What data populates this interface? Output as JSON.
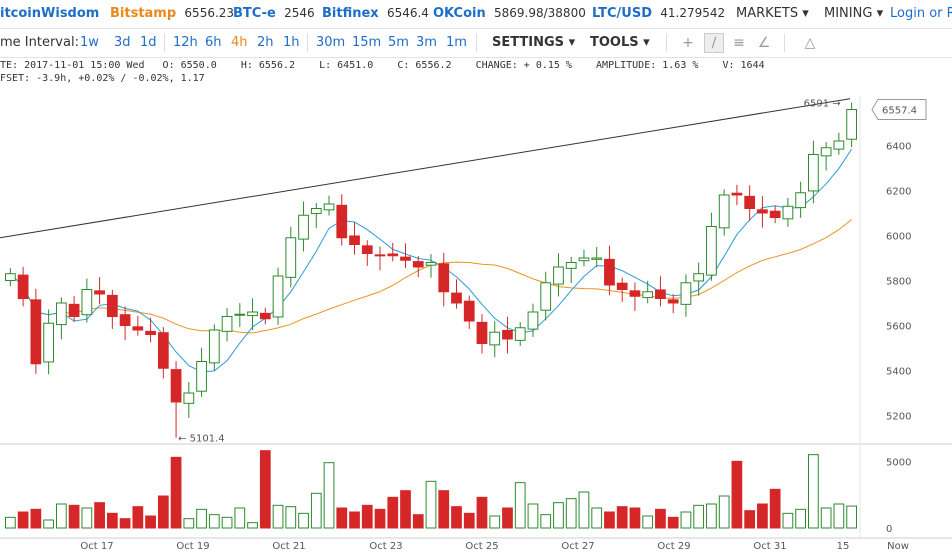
{
  "topbar": {
    "brand": "itcoinWisdom",
    "tickers": [
      {
        "name": "Bitstamp",
        "value": "6556.23",
        "color": "#e88a1a"
      },
      {
        "name": "BTC-e",
        "value": "2546",
        "color": "#1e6ec8"
      },
      {
        "name": "Bitfinex",
        "value": "6546.4",
        "color": "#1e6ec8"
      },
      {
        "name": "OKCoin",
        "value": "5869.98/38800",
        "color": "#1e6ec8"
      },
      {
        "name": "LTC/USD",
        "value": "41.279542",
        "color": "#1e6ec8"
      }
    ],
    "markets_label": "MARKETS",
    "mining_label": "MINING",
    "login_label": "Login or Re"
  },
  "intervals": {
    "label": "me Interval:",
    "items": [
      "1w",
      "3d",
      "1d",
      "12h",
      "6h",
      "4h",
      "2h",
      "1h",
      "30m",
      "15m",
      "5m",
      "3m",
      "1m"
    ],
    "active": "4h",
    "settings_label": "SETTINGS",
    "tools_label": "TOOLS"
  },
  "info": {
    "line1": "TE: 2017-11-01 15:00 Wed   O: 6550.0    H: 6556.2    L: 6451.0    C: 6556.2    CHANGE: + 0.15 %    AMPLITUDE: 1.63 %    V: 1644",
    "line2": "FSET: -3.9h, +0.02% / -0.02%, 1.17"
  },
  "chart_data": {
    "type": "candlestick",
    "y_ticks": [
      "6400",
      "6200",
      "6000",
      "5800",
      "5600",
      "5400",
      "5200"
    ],
    "y_range": [
      5100,
      6620
    ],
    "x_ticks": [
      "Oct 17",
      "Oct 19",
      "Oct 21",
      "Oct 23",
      "Oct 25",
      "Oct 27",
      "Oct 29",
      "Oct 31",
      "15",
      "Now"
    ],
    "price_label": "6557.4",
    "high_annotation": "6591",
    "low_annotation": "5101.4",
    "volume_ticks": [
      "5000",
      "0"
    ],
    "close": [
      5830,
      5720,
      5430,
      5610,
      5700,
      5640,
      5760,
      5740,
      5640,
      5600,
      5580,
      5560,
      5410,
      5260,
      5300,
      5440,
      5580,
      5640,
      5650,
      5660,
      5630,
      5820,
      5990,
      6090,
      6120,
      6140,
      5990,
      5960,
      5920,
      5910,
      5910,
      5890,
      5860,
      5880,
      5750,
      5700,
      5620,
      5520,
      5570,
      5540,
      5590,
      5660,
      5790,
      5860,
      5880,
      5900,
      5900,
      5780,
      5760,
      5730,
      5750,
      5720,
      5700,
      5790,
      5830,
      6040,
      6180,
      6180,
      6120,
      6100,
      6080,
      6130,
      6190,
      6360,
      6390,
      6420,
      6560
    ],
    "volume": [
      800,
      1200,
      1400,
      600,
      1800,
      1700,
      1500,
      1900,
      1100,
      700,
      1600,
      900,
      2400,
      5300,
      700,
      1400,
      1000,
      800,
      1500,
      400,
      5800,
      1700,
      1600,
      1100,
      2600,
      4900,
      1500,
      1200,
      1700,
      1400,
      2300,
      2800,
      1000,
      3500,
      2800,
      1600,
      1100,
      2300,
      900,
      1500,
      3400,
      1800,
      1000,
      1900,
      2200,
      2700,
      1500,
      1200,
      1600,
      1500,
      900,
      1400,
      800,
      1200,
      1700,
      1800,
      2400,
      5000,
      1300,
      1800,
      2900,
      1100,
      1400,
      5500,
      1500,
      1800,
      1644
    ]
  }
}
